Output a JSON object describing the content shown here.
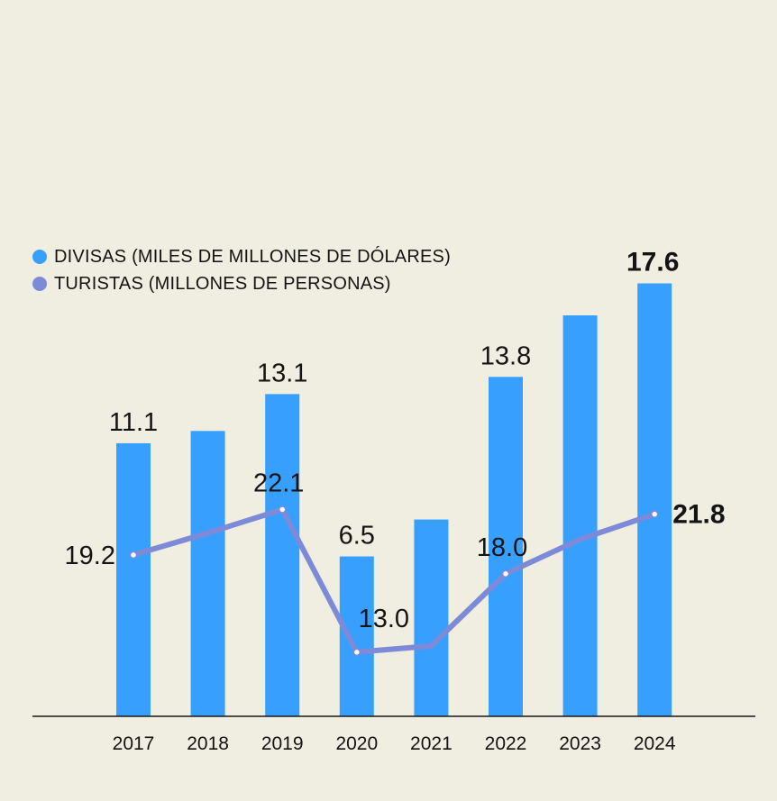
{
  "chart_data": {
    "type": "bar",
    "title": "",
    "xlabel": "",
    "ylabel": "",
    "categories": [
      "2017",
      "2018",
      "2019",
      "2020",
      "2021",
      "2022",
      "2023",
      "2024"
    ],
    "ylim": [
      0,
      25
    ],
    "series": [
      {
        "name": "DIVISAS (MILES DE MILLONES DE DÓLARES)",
        "kind": "bar",
        "color": "#37a0ff",
        "values": [
          11.1,
          11.6,
          13.1,
          6.5,
          8.0,
          13.8,
          16.3,
          17.6
        ],
        "labels": [
          "11.1",
          "",
          "13.1",
          "6.5",
          "",
          "13.8",
          "",
          "17.6"
        ]
      },
      {
        "name": "TURISTAS (MILLONES DE PERSONAS)",
        "kind": "line",
        "color": "#7d8ad8",
        "values": [
          19.2,
          20.6,
          22.1,
          13.0,
          13.4,
          18.0,
          20.2,
          21.8
        ],
        "labels": [
          "19.2",
          "",
          "22.1",
          "13.0",
          "",
          "18.0",
          "",
          "21.8"
        ]
      }
    ],
    "highlight_last": true,
    "grid": false,
    "legend_position": "top-left"
  }
}
